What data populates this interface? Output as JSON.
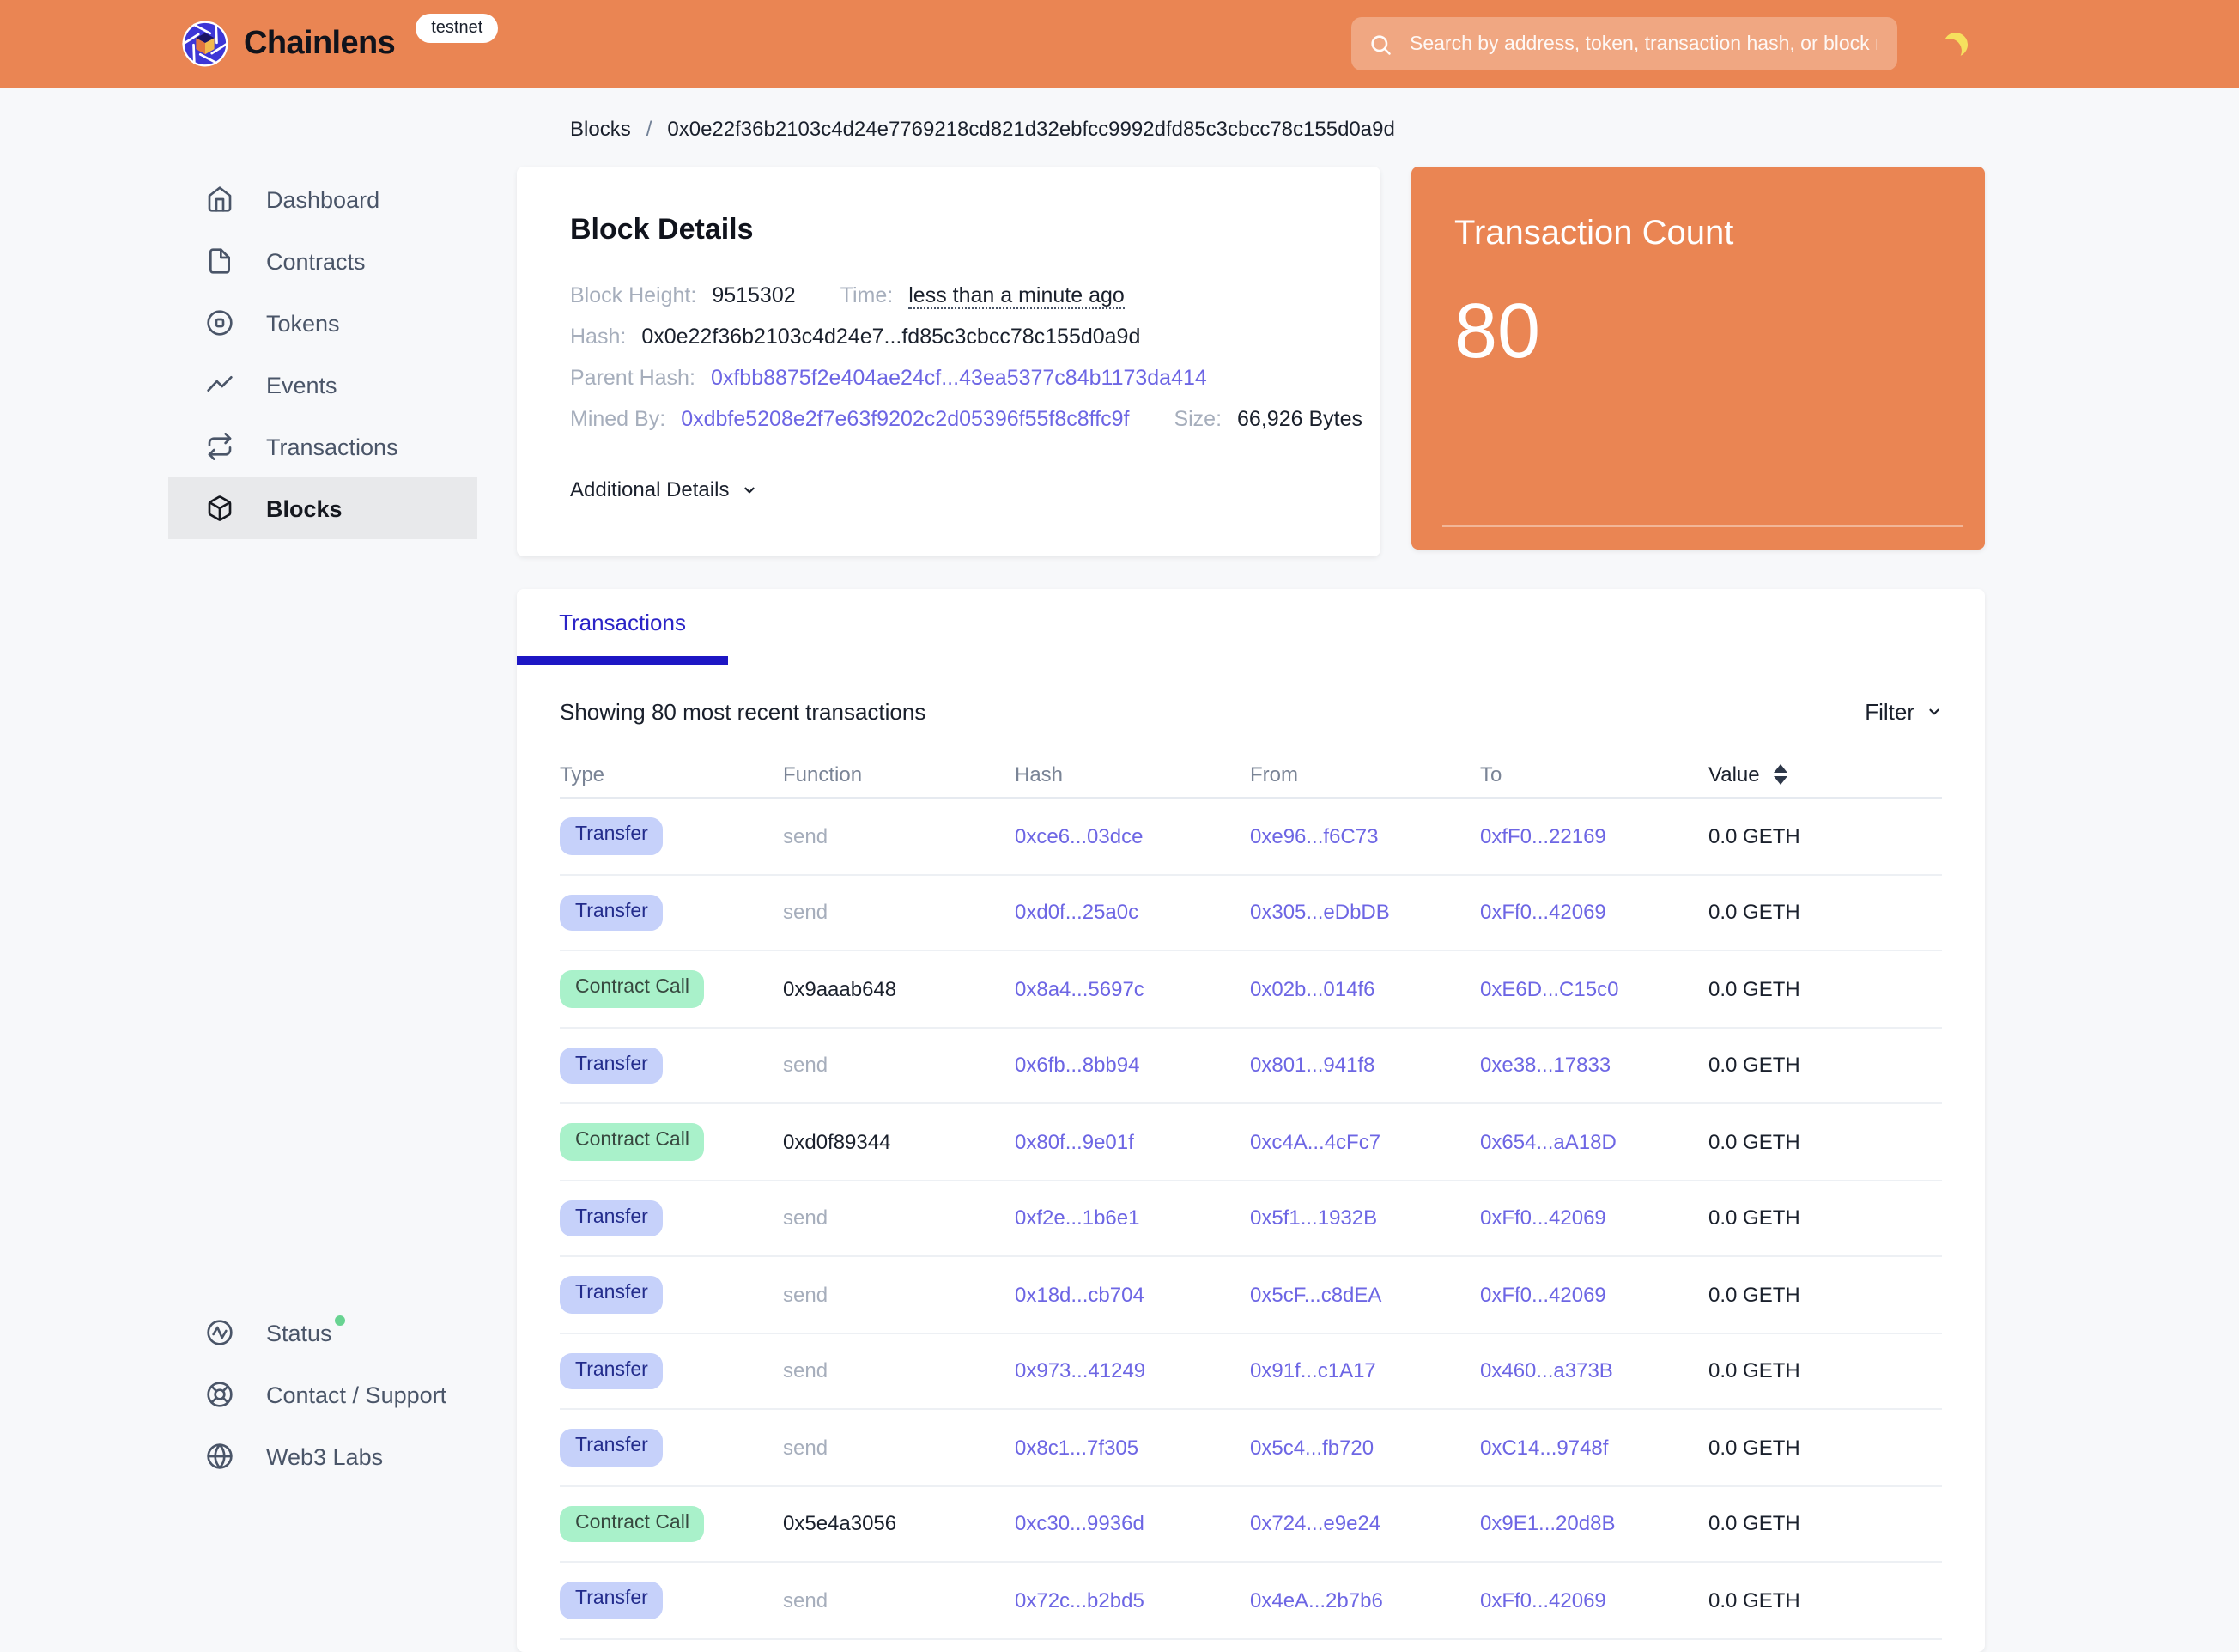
{
  "brand": {
    "name": "Chainlens",
    "env_badge": "testnet"
  },
  "header": {
    "search_placeholder": "Search by address, token, transaction hash, or block number"
  },
  "breadcrumb": {
    "parent": "Blocks",
    "separator": "/",
    "current": "0x0e22f36b2103c4d24e7769218cd821d32ebfcc9992dfd85c3cbcc78c155d0a9d"
  },
  "sidebar": {
    "items": [
      {
        "label": "Dashboard",
        "icon": "home-icon"
      },
      {
        "label": "Contracts",
        "icon": "file-icon"
      },
      {
        "label": "Tokens",
        "icon": "token-icon"
      },
      {
        "label": "Events",
        "icon": "trend-icon"
      },
      {
        "label": "Transactions",
        "icon": "repeat-icon"
      },
      {
        "label": "Blocks",
        "icon": "cube-icon",
        "active": true
      }
    ],
    "footer_items": [
      {
        "label": "Status",
        "icon": "activity-icon",
        "status_dot": true
      },
      {
        "label": "Contact / Support",
        "icon": "lifebuoy-icon"
      },
      {
        "label": "Web3 Labs",
        "icon": "globe-icon"
      }
    ]
  },
  "block_details": {
    "title": "Block Details",
    "block_height_label": "Block Height:",
    "block_height": "9515302",
    "time_label": "Time:",
    "time": "less than a minute ago",
    "hash_label": "Hash:",
    "hash": "0x0e22f36b2103c4d24e7...fd85c3cbcc78c155d0a9d",
    "parent_hash_label": "Parent Hash:",
    "parent_hash": "0xfbb8875f2e404ae24cf...43ea5377c84b1173da414",
    "mined_by_label": "Mined By:",
    "mined_by": "0xdbfe5208e2f7e63f9202c2d05396f55f8c8ffc9f",
    "size_label": "Size:",
    "size": "66,926 Bytes",
    "additional_details_label": "Additional Details"
  },
  "transaction_count": {
    "title": "Transaction Count",
    "value": "80"
  },
  "transactions_panel": {
    "tab_label": "Transactions",
    "summary": "Showing 80 most recent transactions",
    "filter_label": "Filter",
    "table": {
      "columns": [
        "Type",
        "Function",
        "Hash",
        "From",
        "To",
        "Value"
      ],
      "rows": [
        {
          "type": "Transfer",
          "function": "send",
          "hash": "0xce6...03dce",
          "from": "0xe96...f6C73",
          "to": "0xfF0...22169",
          "value": "0.0 GETH"
        },
        {
          "type": "Transfer",
          "function": "send",
          "hash": "0xd0f...25a0c",
          "from": "0x305...eDbDB",
          "to": "0xFf0...42069",
          "value": "0.0 GETH"
        },
        {
          "type": "Contract Call",
          "function": "0x9aaab648",
          "hash": "0x8a4...5697c",
          "from": "0x02b...014f6",
          "to": "0xE6D...C15c0",
          "value": "0.0 GETH"
        },
        {
          "type": "Transfer",
          "function": "send",
          "hash": "0x6fb...8bb94",
          "from": "0x801...941f8",
          "to": "0xe38...17833",
          "value": "0.0 GETH"
        },
        {
          "type": "Contract Call",
          "function": "0xd0f89344",
          "hash": "0x80f...9e01f",
          "from": "0xc4A...4cFc7",
          "to": "0x654...aA18D",
          "value": "0.0 GETH"
        },
        {
          "type": "Transfer",
          "function": "send",
          "hash": "0xf2e...1b6e1",
          "from": "0x5f1...1932B",
          "to": "0xFf0...42069",
          "value": "0.0 GETH"
        },
        {
          "type": "Transfer",
          "function": "send",
          "hash": "0x18d...cb704",
          "from": "0x5cF...c8dEA",
          "to": "0xFf0...42069",
          "value": "0.0 GETH"
        },
        {
          "type": "Transfer",
          "function": "send",
          "hash": "0x973...41249",
          "from": "0x91f...c1A17",
          "to": "0x460...a373B",
          "value": "0.0 GETH"
        },
        {
          "type": "Transfer",
          "function": "send",
          "hash": "0x8c1...7f305",
          "from": "0x5c4...fb720",
          "to": "0xC14...9748f",
          "value": "0.0 GETH"
        },
        {
          "type": "Contract Call",
          "function": "0x5e4a3056",
          "hash": "0xc30...9936d",
          "from": "0x724...e9e24",
          "to": "0x9E1...20d8B",
          "value": "0.0 GETH"
        },
        {
          "type": "Transfer",
          "function": "send",
          "hash": "0x72c...b2bd5",
          "from": "0x4eA...2b7b6",
          "to": "0xFf0...42069",
          "value": "0.0 GETH"
        }
      ]
    }
  },
  "colors": {
    "accent_orange": "#EA8553",
    "link_purple": "#6D66E4",
    "tab_blue": "#1D16C4",
    "transfer_pill_bg": "#C6D1FA",
    "transfer_pill_text": "#232C8C",
    "contract_pill_bg": "#A9F1CA",
    "contract_pill_text": "#37483F",
    "status_green": "#68D391"
  }
}
